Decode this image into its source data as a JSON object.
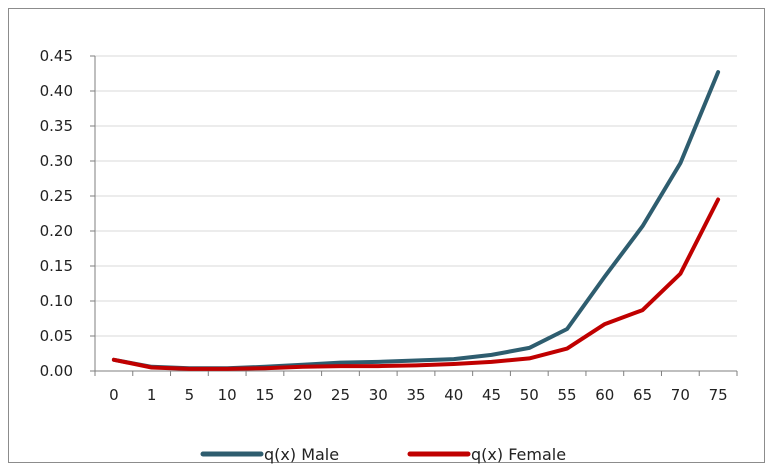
{
  "chart_data": {
    "type": "line",
    "title": "",
    "xlabel": "",
    "ylabel": "",
    "categories": [
      "0",
      "1",
      "5",
      "10",
      "15",
      "20",
      "25",
      "30",
      "35",
      "40",
      "45",
      "50",
      "55",
      "60",
      "65",
      "70",
      "75"
    ],
    "y_ticks": [
      "0.00",
      "0.05",
      "0.10",
      "0.15",
      "0.20",
      "0.25",
      "0.30",
      "0.35",
      "0.40",
      "0.45"
    ],
    "ylim": [
      0,
      0.45
    ],
    "grid": true,
    "legend_position": "bottom",
    "series": [
      {
        "name": "q(x) Male",
        "color": "#2e5d6f",
        "values": [
          0.016,
          0.006,
          0.004,
          0.004,
          0.006,
          0.009,
          0.012,
          0.013,
          0.015,
          0.017,
          0.023,
          0.033,
          0.06,
          0.135,
          0.207,
          0.297,
          0.427
        ]
      },
      {
        "name": "q(x) Female",
        "color": "#c00000",
        "values": [
          0.016,
          0.005,
          0.003,
          0.003,
          0.004,
          0.006,
          0.007,
          0.007,
          0.008,
          0.01,
          0.013,
          0.018,
          0.032,
          0.067,
          0.087,
          0.139,
          0.245
        ]
      }
    ]
  }
}
